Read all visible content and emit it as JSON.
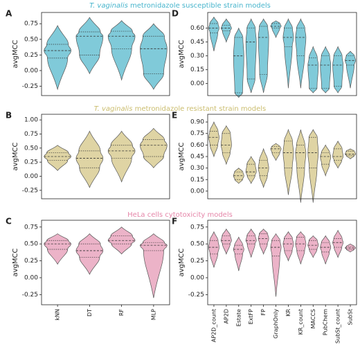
{
  "chart_data": [
    {
      "type": "violin",
      "panel": "A",
      "title_species": "T. vaginalis",
      "title_rest": "metronidazole susceptible strain models",
      "title_color": "#46b4cc",
      "color": "#55b8cc",
      "ylabel": "avgMCC",
      "ylim": [
        -0.4,
        0.93
      ],
      "yticks": [
        -0.25,
        0.0,
        0.25,
        0.5,
        0.75
      ],
      "min": [
        -0.3,
        -0.05,
        -0.15,
        -0.3
      ],
      "q1": [
        0.2,
        0.25,
        0.35,
        -0.05
      ],
      "median": [
        0.32,
        0.55,
        0.55,
        0.35
      ],
      "q3": [
        0.42,
        0.62,
        0.63,
        0.55
      ],
      "max": [
        0.72,
        0.85,
        0.8,
        0.75
      ]
    },
    {
      "type": "violin",
      "panel": "D",
      "color": "#55b8cc",
      "ylabel": "avgMCC",
      "ylim": [
        -0.13,
        0.77
      ],
      "yticks": [
        0.0,
        0.15,
        0.3,
        0.45,
        0.6
      ],
      "min": [
        0.35,
        0.45,
        -0.15,
        -0.1,
        -0.1,
        0.5,
        -0.05,
        -0.05,
        -0.1,
        -0.1,
        -0.1,
        -0.05
      ],
      "q1": [
        0.55,
        0.57,
        -0.1,
        0.05,
        0.1,
        0.6,
        0.4,
        0.3,
        -0.05,
        -0.05,
        -0.03,
        0.2
      ],
      "median": [
        0.6,
        0.6,
        0.3,
        0.45,
        0.5,
        0.62,
        0.5,
        0.5,
        0.2,
        0.2,
        0.2,
        0.25
      ],
      "q3": [
        0.65,
        0.63,
        0.5,
        0.6,
        0.62,
        0.65,
        0.6,
        0.6,
        0.28,
        0.3,
        0.3,
        0.3
      ],
      "max": [
        0.72,
        0.7,
        0.6,
        0.7,
        0.7,
        0.68,
        0.7,
        0.7,
        0.4,
        0.4,
        0.4,
        0.35
      ]
    },
    {
      "type": "violin",
      "panel": "B",
      "title_species": "T. vaginalis",
      "title_rest": "metronidazole resistant strain models",
      "title_color": "#cbbd6e",
      "color": "#d4c585",
      "ylabel": "avgMCC",
      "ylim": [
        -0.4,
        1.1
      ],
      "yticks": [
        -0.25,
        0.0,
        0.25,
        0.5,
        0.75,
        1.0
      ],
      "min": [
        0.1,
        -0.2,
        -0.1,
        0.15
      ],
      "q1": [
        0.28,
        0.15,
        0.32,
        0.35
      ],
      "median": [
        0.35,
        0.32,
        0.45,
        0.55
      ],
      "q3": [
        0.42,
        0.45,
        0.55,
        0.65
      ],
      "max": [
        0.55,
        0.8,
        0.8,
        0.85
      ]
    },
    {
      "type": "violin",
      "panel": "E",
      "color": "#d4c585",
      "ylabel": "avgMCC",
      "ylim": [
        -0.1,
        1.0
      ],
      "yticks": [
        0.0,
        0.15,
        0.3,
        0.45,
        0.6,
        0.75,
        0.9
      ],
      "min": [
        0.45,
        0.35,
        0.1,
        0.1,
        0.05,
        0.4,
        -0.05,
        -0.15,
        -0.15,
        0.2,
        0.3,
        0.42
      ],
      "q1": [
        0.6,
        0.5,
        0.15,
        0.2,
        0.2,
        0.5,
        0.3,
        0.3,
        0.3,
        0.35,
        0.4,
        0.46
      ],
      "median": [
        0.7,
        0.6,
        0.2,
        0.25,
        0.3,
        0.55,
        0.5,
        0.5,
        0.5,
        0.45,
        0.45,
        0.48
      ],
      "q3": [
        0.78,
        0.75,
        0.25,
        0.35,
        0.4,
        0.58,
        0.65,
        0.6,
        0.7,
        0.5,
        0.55,
        0.52
      ],
      "max": [
        0.9,
        0.85,
        0.3,
        0.45,
        0.55,
        0.62,
        0.8,
        0.8,
        0.8,
        0.6,
        0.65,
        0.55
      ]
    },
    {
      "type": "violin",
      "panel": "C",
      "title": "HeLa cells cytotoxicity models",
      "title_color": "#e585a8",
      "color": "#e59ab5",
      "ylabel": "avgMCC",
      "ylim": [
        -0.4,
        0.85
      ],
      "yticks": [
        -0.25,
        0.0,
        0.25,
        0.5,
        0.75
      ],
      "categories": [
        "kNN",
        "DT",
        "RF",
        "MLP"
      ],
      "min": [
        0.2,
        0.05,
        0.35,
        -0.3
      ],
      "q1": [
        0.42,
        0.3,
        0.5,
        0.4
      ],
      "median": [
        0.5,
        0.4,
        0.55,
        0.48
      ],
      "q3": [
        0.55,
        0.5,
        0.62,
        0.52
      ],
      "max": [
        0.65,
        0.65,
        0.75,
        0.65
      ]
    },
    {
      "type": "violin",
      "panel": "F",
      "color": "#e59ab5",
      "ylabel": "avgMCC",
      "ylim": [
        -0.4,
        0.85
      ],
      "yticks": [
        -0.25,
        0.0,
        0.25,
        0.5,
        0.75
      ],
      "categories": [
        "AP2D_count",
        "AP2D",
        "Estate",
        "ExtFP",
        "FP",
        "GraphOnly",
        "KR",
        "KR_count",
        "MACCS",
        "PubChem",
        "SubSt_count",
        "SubSt"
      ],
      "min": [
        0.15,
        0.35,
        0.1,
        0.3,
        0.35,
        -0.28,
        0.25,
        0.2,
        0.3,
        0.2,
        0.3,
        0.38
      ],
      "q1": [
        0.35,
        0.5,
        0.35,
        0.5,
        0.5,
        0.32,
        0.4,
        0.4,
        0.42,
        0.38,
        0.45,
        0.42
      ],
      "median": [
        0.45,
        0.55,
        0.42,
        0.55,
        0.58,
        0.45,
        0.5,
        0.5,
        0.48,
        0.45,
        0.52,
        0.44
      ],
      "q3": [
        0.55,
        0.62,
        0.48,
        0.62,
        0.65,
        0.55,
        0.58,
        0.6,
        0.55,
        0.52,
        0.58,
        0.46
      ],
      "max": [
        0.68,
        0.72,
        0.6,
        0.72,
        0.72,
        0.65,
        0.68,
        0.68,
        0.62,
        0.62,
        0.7,
        0.5
      ]
    }
  ]
}
